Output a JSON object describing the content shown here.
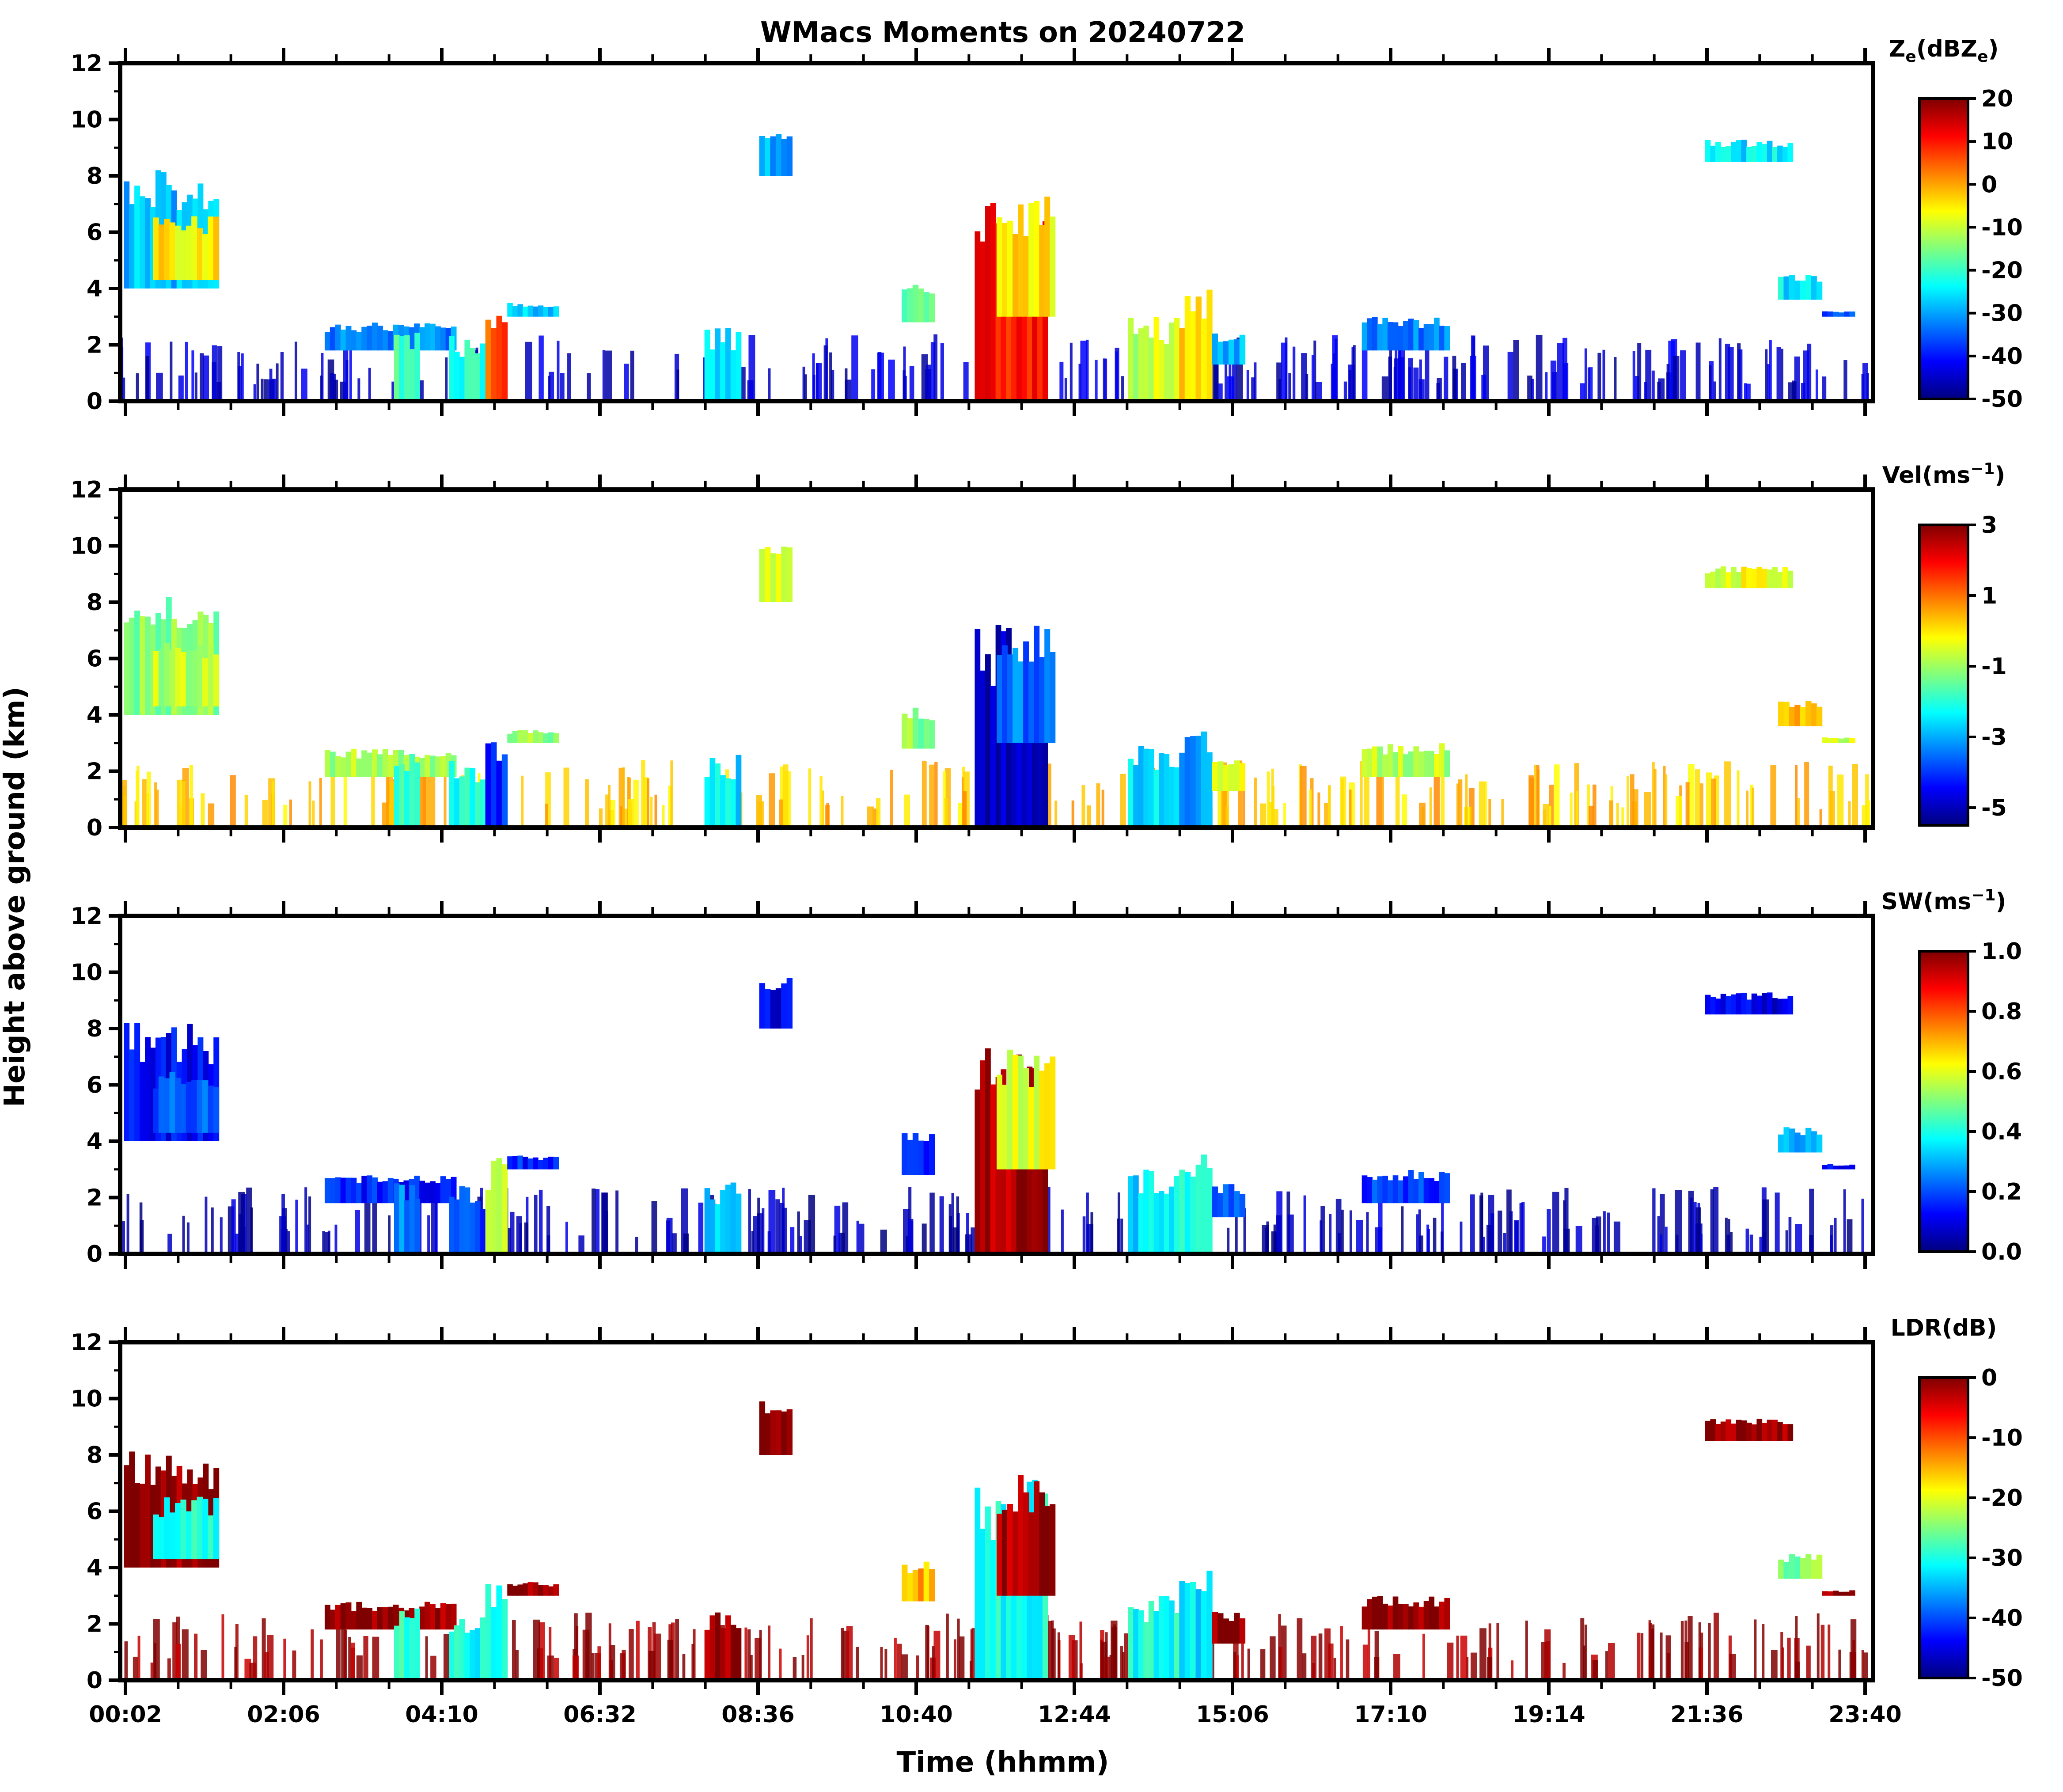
{
  "chart_data": {
    "type": "heatmap",
    "title": "WMacs Moments on 20240722",
    "xlabel": "Time (hhmm)",
    "ylabel": "Height above ground (km)",
    "x_ticklabels": [
      "00:02",
      "02:06",
      "04:10",
      "06:32",
      "08:36",
      "10:40",
      "12:44",
      "15:06",
      "17:10",
      "19:14",
      "21:36",
      "23:40"
    ],
    "x_range_hours": [
      0.0,
      24.0
    ],
    "ylim": [
      0,
      12
    ],
    "y_ticks": [
      0,
      2,
      4,
      6,
      8,
      10,
      12
    ],
    "colormap": "jet",
    "colors": {
      "jet": [
        "#00007f",
        "#0000ff",
        "#007fff",
        "#00ffff",
        "#7fff7f",
        "#ffff00",
        "#ff7f00",
        "#ff0000",
        "#7f0000"
      ]
    },
    "panels": [
      {
        "id": "ze",
        "colorbar_label": "Z",
        "colorbar_sub": "e",
        "colorbar_unit_prefix": "(dBZ",
        "colorbar_unit_sub": "e",
        "colorbar_unit_suffix": ")",
        "vmin": -50,
        "vmax": 20,
        "colorbar_ticks": [
          "20",
          "10",
          "0",
          "-10",
          "-20",
          "-30",
          "-40",
          "-50"
        ]
      },
      {
        "id": "vel",
        "colorbar_label": "Vel(ms",
        "colorbar_sup": "−1",
        "colorbar_suffix": ")",
        "vmin": -5.5,
        "vmax": 3,
        "colorbar_ticks": [
          "3",
          "1",
          "-1",
          "-3",
          "-5"
        ]
      },
      {
        "id": "sw",
        "colorbar_label": "SW(ms",
        "colorbar_sup": "−1",
        "colorbar_suffix": ")",
        "vmin": 0,
        "vmax": 1,
        "colorbar_ticks": [
          "1.0",
          "0.8",
          "0.6",
          "0.4",
          "0.2",
          "0.0"
        ]
      },
      {
        "id": "ldr",
        "colorbar_label": "LDR(dB)",
        "vmin": -50,
        "vmax": 0,
        "colorbar_ticks": [
          "0",
          "-10",
          "-20",
          "-30",
          "-40",
          "-50"
        ]
      }
    ],
    "features": [
      {
        "name": "cirrus-early",
        "t0": 0.05,
        "t1": 1.35,
        "h0": 4.0,
        "h1": 8.2,
        "ze": -28,
        "vel": -1.2,
        "sw": 0.12,
        "ldr": -1
      },
      {
        "name": "cirrus-early-core",
        "t0": 0.45,
        "t1": 1.35,
        "h0": 4.3,
        "h1": 6.6,
        "ze": -5,
        "vel": -0.8,
        "sw": 0.2,
        "ldr": -30
      },
      {
        "name": "ci-0930",
        "t0": 8.75,
        "t1": 9.2,
        "h0": 8.0,
        "h1": 10.0,
        "ze": -30,
        "vel": -0.5,
        "sw": 0.1,
        "ldr": -1
      },
      {
        "name": "cloud-0300",
        "t0": 2.8,
        "t1": 4.6,
        "h0": 1.8,
        "h1": 2.8,
        "ze": -32,
        "vel": -0.9,
        "sw": 0.15,
        "ldr": -1
      },
      {
        "name": "cloud-0410",
        "t0": 3.75,
        "t1": 4.1,
        "h0": 0.0,
        "h1": 2.8,
        "ze": -18,
        "vel": -1.8,
        "sw": 0.25,
        "ldr": -28
      },
      {
        "name": "cloud-0450",
        "t0": 4.5,
        "t1": 5.0,
        "h0": 0.0,
        "h1": 2.4,
        "ze": -22,
        "vel": -2.2,
        "sw": 0.2,
        "ldr": -30
      },
      {
        "name": "rain-0510",
        "t0": 5.0,
        "t1": 5.3,
        "h0": 0.0,
        "h1": 3.5,
        "ze": 5,
        "vel": -4.0,
        "sw": 0.55,
        "ldr": -30
      },
      {
        "name": "anvil-0520",
        "t0": 5.3,
        "t1": 6.0,
        "h0": 3.0,
        "h1": 3.5,
        "ze": -28,
        "vel": -1.0,
        "sw": 0.15,
        "ldr": -1
      },
      {
        "name": "cloud-0830",
        "t0": 8.0,
        "t1": 8.5,
        "h0": 0.0,
        "h1": 2.6,
        "ze": -25,
        "vel": -2.5,
        "sw": 0.35,
        "ldr": -1
      },
      {
        "name": "cloud-1040",
        "t0": 10.7,
        "t1": 11.15,
        "h0": 2.8,
        "h1": 4.3,
        "ze": -15,
        "vel": -1.2,
        "sw": 0.18,
        "ldr": -15
      },
      {
        "name": "storm-1210",
        "t0": 11.7,
        "t1": 12.7,
        "h0": 0.0,
        "h1": 7.3,
        "ze": 10,
        "vel": -4.8,
        "sw": 0.95,
        "ldr": -30
      },
      {
        "name": "storm-top",
        "t0": 12.0,
        "t1": 12.8,
        "h0": 3.0,
        "h1": 7.3,
        "ze": -5,
        "vel": -3.5,
        "sw": 0.6,
        "ldr": -2
      },
      {
        "name": "cloud-1420",
        "t0": 13.8,
        "t1": 14.5,
        "h0": 0.0,
        "h1": 3.0,
        "ze": -10,
        "vel": -2.5,
        "sw": 0.35,
        "ldr": -30
      },
      {
        "name": "cloud-1450",
        "t0": 14.5,
        "t1": 14.95,
        "h0": 0.0,
        "h1": 4.0,
        "ze": -5,
        "vel": -3.0,
        "sw": 0.4,
        "ldr": -32
      },
      {
        "name": "cloud-1510",
        "t0": 14.95,
        "t1": 15.4,
        "h0": 1.3,
        "h1": 2.5,
        "ze": -28,
        "vel": -0.5,
        "sw": 0.2,
        "ldr": -1
      },
      {
        "name": "cloud-1730",
        "t0": 17.0,
        "t1": 18.2,
        "h0": 1.8,
        "h1": 3.0,
        "ze": -33,
        "vel": -0.8,
        "sw": 0.18,
        "ldr": -1
      },
      {
        "name": "ci-2200",
        "t0": 21.7,
        "t1": 22.9,
        "h0": 8.5,
        "h1": 9.3,
        "ze": -25,
        "vel": -0.4,
        "sw": 0.1,
        "ldr": -1
      },
      {
        "name": "cloud-2300",
        "t0": 22.7,
        "t1": 23.3,
        "h0": 3.6,
        "h1": 4.5,
        "ze": -25,
        "vel": 0.2,
        "sw": 0.3,
        "ldr": -25
      },
      {
        "name": "cloud-2320",
        "t0": 23.3,
        "t1": 23.75,
        "h0": 3.0,
        "h1": 3.2,
        "ze": -35,
        "vel": -0.5,
        "sw": 0.1,
        "ldr": -1
      }
    ]
  }
}
